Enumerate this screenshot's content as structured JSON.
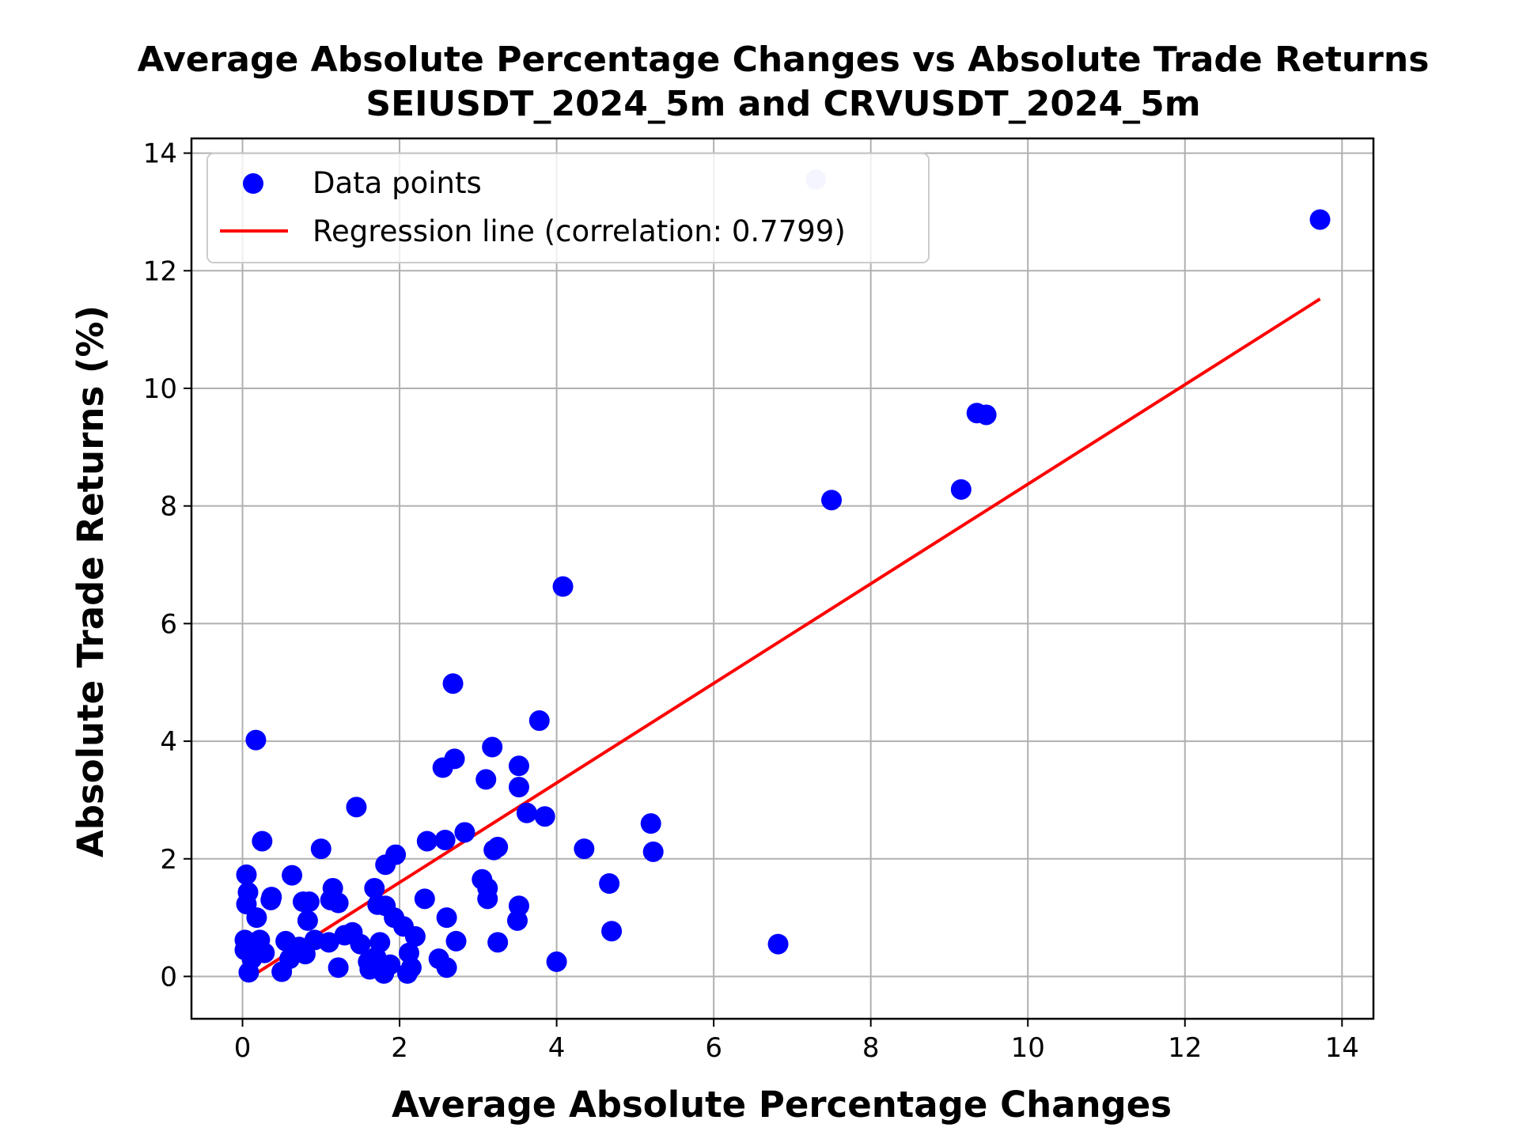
{
  "chart_data": {
    "type": "scatter",
    "title": "Average Absolute Percentage Changes vs Absolute Trade Returns",
    "subtitle": "SEIUSDT_2024_5m and CRVUSDT_2024_5m",
    "xlabel": "Average Absolute Percentage Changes",
    "ylabel": "Absolute Trade Returns (%)",
    "xlim": [
      -0.65,
      14.4
    ],
    "ylim": [
      -0.72,
      14.25
    ],
    "xticks": [
      0,
      2,
      4,
      6,
      8,
      10,
      12,
      14
    ],
    "yticks": [
      0,
      2,
      4,
      6,
      8,
      10,
      12,
      14
    ],
    "grid": true,
    "legend_position": "top-left",
    "series": [
      {
        "name": "Data points",
        "kind": "scatter",
        "color": "#0000ff",
        "points": [
          [
            0.05,
            1.73
          ],
          [
            0.17,
            4.02
          ],
          [
            0.25,
            2.3
          ],
          [
            0.63,
            1.72
          ],
          [
            1.0,
            2.17
          ],
          [
            1.45,
            2.88
          ],
          [
            0.07,
            1.43
          ],
          [
            0.05,
            1.23
          ],
          [
            0.18,
            1.0
          ],
          [
            0.37,
            1.35
          ],
          [
            0.36,
            1.3
          ],
          [
            0.03,
            0.62
          ],
          [
            0.03,
            0.45
          ],
          [
            0.22,
            0.62
          ],
          [
            0.28,
            0.4
          ],
          [
            0.08,
            0.07
          ],
          [
            0.12,
            0.3
          ],
          [
            0.55,
            0.6
          ],
          [
            0.5,
            0.08
          ],
          [
            0.6,
            0.3
          ],
          [
            0.72,
            0.5
          ],
          [
            0.8,
            0.38
          ],
          [
            0.83,
            0.95
          ],
          [
            0.77,
            1.27
          ],
          [
            0.85,
            1.27
          ],
          [
            0.92,
            0.62
          ],
          [
            1.1,
            0.58
          ],
          [
            1.15,
            1.5
          ],
          [
            1.22,
            1.25
          ],
          [
            1.12,
            1.3
          ],
          [
            1.22,
            0.15
          ],
          [
            1.3,
            0.7
          ],
          [
            1.4,
            0.75
          ],
          [
            1.5,
            0.55
          ],
          [
            1.6,
            0.25
          ],
          [
            1.62,
            0.12
          ],
          [
            1.68,
            1.5
          ],
          [
            1.72,
            1.22
          ],
          [
            1.7,
            0.33
          ],
          [
            1.75,
            0.58
          ],
          [
            1.82,
            1.2
          ],
          [
            1.82,
            1.9
          ],
          [
            1.88,
            0.2
          ],
          [
            1.8,
            0.05
          ],
          [
            1.93,
            1.0
          ],
          [
            1.95,
            2.07
          ],
          [
            2.05,
            0.85
          ],
          [
            2.1,
            0.05
          ],
          [
            2.12,
            0.4
          ],
          [
            2.2,
            0.68
          ],
          [
            2.15,
            0.15
          ],
          [
            2.32,
            1.32
          ],
          [
            2.35,
            2.3
          ],
          [
            2.5,
            0.3
          ],
          [
            2.55,
            3.55
          ],
          [
            2.58,
            2.32
          ],
          [
            2.6,
            1.0
          ],
          [
            2.6,
            0.15
          ],
          [
            2.68,
            4.98
          ],
          [
            2.7,
            3.7
          ],
          [
            2.72,
            0.6
          ],
          [
            2.83,
            2.45
          ],
          [
            3.05,
            1.65
          ],
          [
            3.1,
            3.35
          ],
          [
            3.12,
            1.5
          ],
          [
            3.12,
            1.32
          ],
          [
            3.18,
            3.9
          ],
          [
            3.2,
            2.15
          ],
          [
            3.25,
            2.2
          ],
          [
            3.25,
            0.58
          ],
          [
            3.5,
            0.95
          ],
          [
            3.52,
            3.58
          ],
          [
            3.52,
            3.22
          ],
          [
            3.52,
            1.2
          ],
          [
            3.62,
            2.78
          ],
          [
            3.78,
            4.35
          ],
          [
            3.85,
            2.72
          ],
          [
            4.0,
            0.25
          ],
          [
            4.08,
            6.63
          ],
          [
            4.35,
            2.17
          ],
          [
            4.67,
            1.58
          ],
          [
            4.7,
            0.77
          ],
          [
            5.2,
            2.6
          ],
          [
            5.23,
            2.12
          ],
          [
            6.82,
            0.55
          ],
          [
            7.5,
            8.1
          ],
          [
            9.15,
            8.28
          ],
          [
            9.35,
            9.58
          ],
          [
            9.47,
            9.55
          ],
          [
            13.72,
            12.87
          ]
        ]
      },
      {
        "name": "Regression line (correlation: 0.7799)",
        "kind": "line",
        "color": "#ff0000",
        "x": [
          0.03,
          13.72
        ],
        "y": [
          -0.07,
          11.52
        ]
      }
    ],
    "highlighted_points": [
      {
        "x": 7.3,
        "y": 13.55,
        "color": "#ccccff"
      }
    ]
  }
}
